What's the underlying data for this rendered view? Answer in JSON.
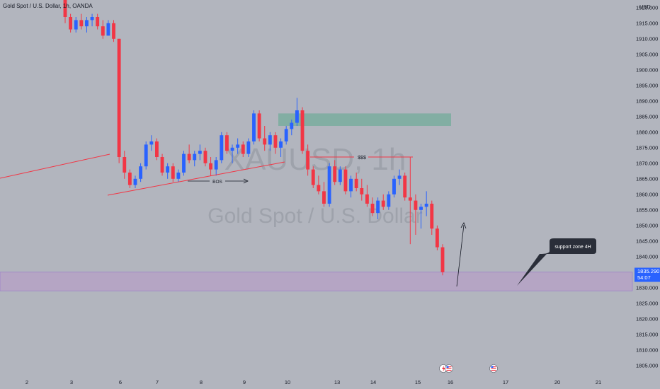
{
  "header": {
    "title": "Gold Spot / U.S. Dollar, 1h, OANDA"
  },
  "watermark": {
    "symbol": "XAUUSD, 1h",
    "name": "Gold Spot / U.S. Dollar"
  },
  "price_axis": {
    "currency": "USD",
    "last_price": "1835.290",
    "countdown": "54:07"
  },
  "annotations": {
    "bos": "BOS",
    "liquidity": "$$$",
    "callout": "support zone 4H"
  },
  "colors": {
    "background": "#b2b5be",
    "bull": "#2962ff",
    "bear": "#f23645",
    "supply_zone": "#79ad9f",
    "support_zone": "#b89bc8",
    "trendline": "#f23645",
    "callout_bg": "#2a2e39"
  },
  "chart_data": {
    "type": "candlestick",
    "title": "Gold Spot / U.S. Dollar, 1h, OANDA",
    "ylabel": "USD",
    "ylim": [
      1802,
      1922
    ],
    "y_ticks": [
      1805,
      1810,
      1815,
      1820,
      1825,
      1830,
      1835,
      1840,
      1845,
      1850,
      1855,
      1860,
      1865,
      1870,
      1875,
      1880,
      1885,
      1890,
      1895,
      1900,
      1905,
      1910,
      1915,
      1920
    ],
    "y_tick_labels": [
      "1805.000",
      "1810.000",
      "1815.000",
      "1820.000",
      "1825.000",
      "1830.000",
      "1835.000",
      "1840.000",
      "1845.000",
      "1850.000",
      "1855.000",
      "1860.000",
      "1865.000",
      "1870.000",
      "1875.000",
      "1880.000",
      "1885.000",
      "1890.000",
      "1895.000",
      "1900.000",
      "1905.000",
      "1910.000",
      "1915.000",
      "1920.000"
    ],
    "x_tick_labels": [
      "2",
      "3",
      "6",
      "7",
      "8",
      "9",
      "10",
      "13",
      "14",
      "15",
      "16",
      "17",
      "20",
      "21"
    ],
    "series": [
      {
        "values": [
          [
            1923,
            1924,
            1915,
            1917
          ],
          [
            1917,
            1918,
            1912,
            1913
          ],
          [
            1913,
            1917,
            1912,
            1916
          ],
          [
            1916,
            1918,
            1913,
            1914
          ],
          [
            1914,
            1917,
            1912,
            1916
          ],
          [
            1916,
            1918,
            1914,
            1917
          ],
          [
            1917,
            1918,
            1913,
            1914
          ],
          [
            1914,
            1916,
            1910,
            1911
          ],
          [
            1911,
            1916,
            1911,
            1915
          ],
          [
            1915,
            1916,
            1909,
            1910
          ],
          [
            1910,
            1910,
            1870,
            1872
          ],
          [
            1872,
            1874,
            1865,
            1867
          ],
          [
            1867,
            1868,
            1862,
            1863
          ],
          [
            1863,
            1866,
            1862,
            1865
          ],
          [
            1865,
            1870,
            1864,
            1869
          ],
          [
            1869,
            1877,
            1868,
            1876
          ],
          [
            1876,
            1879,
            1874,
            1877
          ],
          [
            1877,
            1878,
            1871,
            1872
          ],
          [
            1872,
            1873,
            1866,
            1867
          ],
          [
            1867,
            1870,
            1865,
            1869
          ],
          [
            1869,
            1870,
            1864,
            1865
          ],
          [
            1865,
            1868,
            1864,
            1867
          ],
          [
            1867,
            1874,
            1866,
            1873
          ],
          [
            1873,
            1876,
            1870,
            1871
          ],
          [
            1871,
            1874,
            1869,
            1873
          ],
          [
            1873,
            1876,
            1871,
            1874
          ],
          [
            1874,
            1875,
            1869,
            1870
          ],
          [
            1870,
            1872,
            1866,
            1868
          ],
          [
            1868,
            1872,
            1866,
            1871
          ],
          [
            1871,
            1880,
            1870,
            1879
          ],
          [
            1879,
            1880,
            1873,
            1874
          ],
          [
            1874,
            1876,
            1870,
            1875
          ],
          [
            1875,
            1878,
            1873,
            1876
          ],
          [
            1876,
            1877,
            1872,
            1873
          ],
          [
            1873,
            1878,
            1872,
            1877
          ],
          [
            1877,
            1887,
            1876,
            1886
          ],
          [
            1886,
            1887,
            1877,
            1878
          ],
          [
            1878,
            1882,
            1874,
            1876
          ],
          [
            1876,
            1880,
            1874,
            1879
          ],
          [
            1879,
            1880,
            1873,
            1875
          ],
          [
            1875,
            1878,
            1872,
            1877
          ],
          [
            1877,
            1882,
            1876,
            1881
          ],
          [
            1881,
            1884,
            1879,
            1883
          ],
          [
            1883,
            1891,
            1882,
            1887
          ],
          [
            1887,
            1888,
            1873,
            1874
          ],
          [
            1874,
            1876,
            1866,
            1868
          ],
          [
            1868,
            1869,
            1862,
            1863
          ],
          [
            1863,
            1866,
            1860,
            1861
          ],
          [
            1861,
            1864,
            1856,
            1857
          ],
          [
            1857,
            1870,
            1856,
            1869
          ],
          [
            1869,
            1871,
            1863,
            1864
          ],
          [
            1864,
            1869,
            1863,
            1868
          ],
          [
            1868,
            1869,
            1860,
            1861
          ],
          [
            1861,
            1866,
            1859,
            1865
          ],
          [
            1865,
            1867,
            1861,
            1862
          ],
          [
            1862,
            1865,
            1858,
            1860
          ],
          [
            1860,
            1863,
            1856,
            1857
          ],
          [
            1857,
            1859,
            1853,
            1854
          ],
          [
            1854,
            1859,
            1852,
            1858
          ],
          [
            1858,
            1860,
            1855,
            1856
          ],
          [
            1856,
            1861,
            1855,
            1860
          ],
          [
            1860,
            1866,
            1859,
            1865
          ],
          [
            1865,
            1868,
            1863,
            1866
          ],
          [
            1866,
            1867,
            1858,
            1859
          ],
          [
            1859,
            1872,
            1844,
            1858
          ],
          [
            1858,
            1860,
            1847,
            1855
          ],
          [
            1855,
            1857,
            1849,
            1856
          ],
          [
            1856,
            1861,
            1853,
            1857
          ],
          [
            1857,
            1858,
            1847,
            1849
          ],
          [
            1849,
            1850,
            1842,
            1843
          ],
          [
            1843,
            1844,
            1834,
            1835
          ]
        ]
      }
    ],
    "levels": {
      "supply_zone": [
        1882,
        1886
      ],
      "support_zone": [
        1829,
        1835
      ],
      "liquidity_level": 1872,
      "last_price": 1835.29
    },
    "grid": false,
    "legend": "none"
  }
}
